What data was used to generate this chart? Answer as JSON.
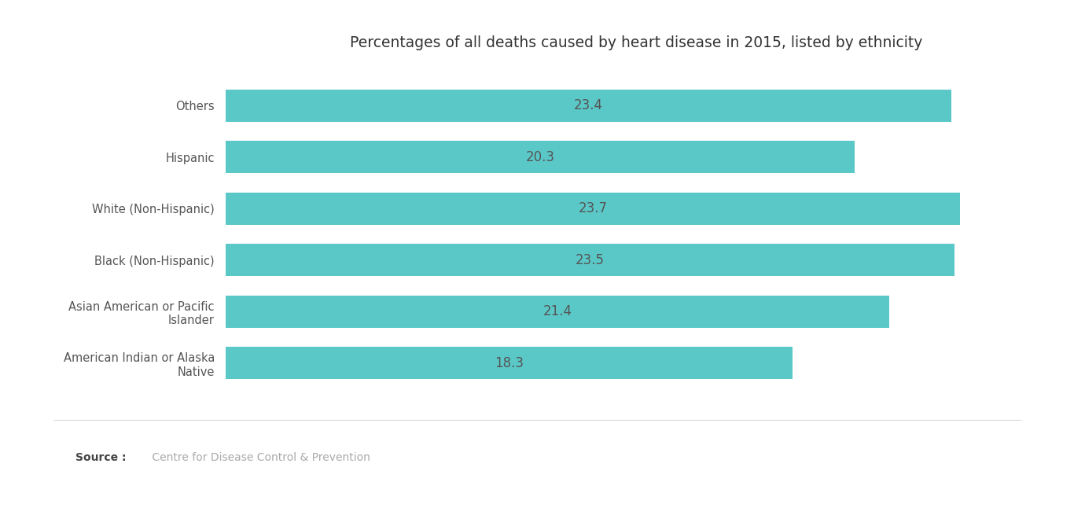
{
  "title": "Percentages of all deaths caused by heart disease in 2015, listed by ethnicity",
  "categories": [
    "American Indian or Alaska\nNative",
    "Asian American or Pacific\nIslander",
    "Black (Non-Hispanic)",
    "White (Non-Hispanic)",
    "Hispanic",
    "Others"
  ],
  "values": [
    18.3,
    21.4,
    23.5,
    23.7,
    20.3,
    23.4
  ],
  "bar_color": "#5BC8C8",
  "label_color": "#555555",
  "title_color": "#333333",
  "source_bold": "Source :",
  "source_text": " Centre for Disease Control & Prevention",
  "background_color": "#ffffff",
  "xlim": [
    0,
    26.5
  ],
  "bar_height": 0.62,
  "value_fontsize": 12,
  "label_fontsize": 10.5,
  "title_fontsize": 13.5,
  "source_fontsize": 10
}
